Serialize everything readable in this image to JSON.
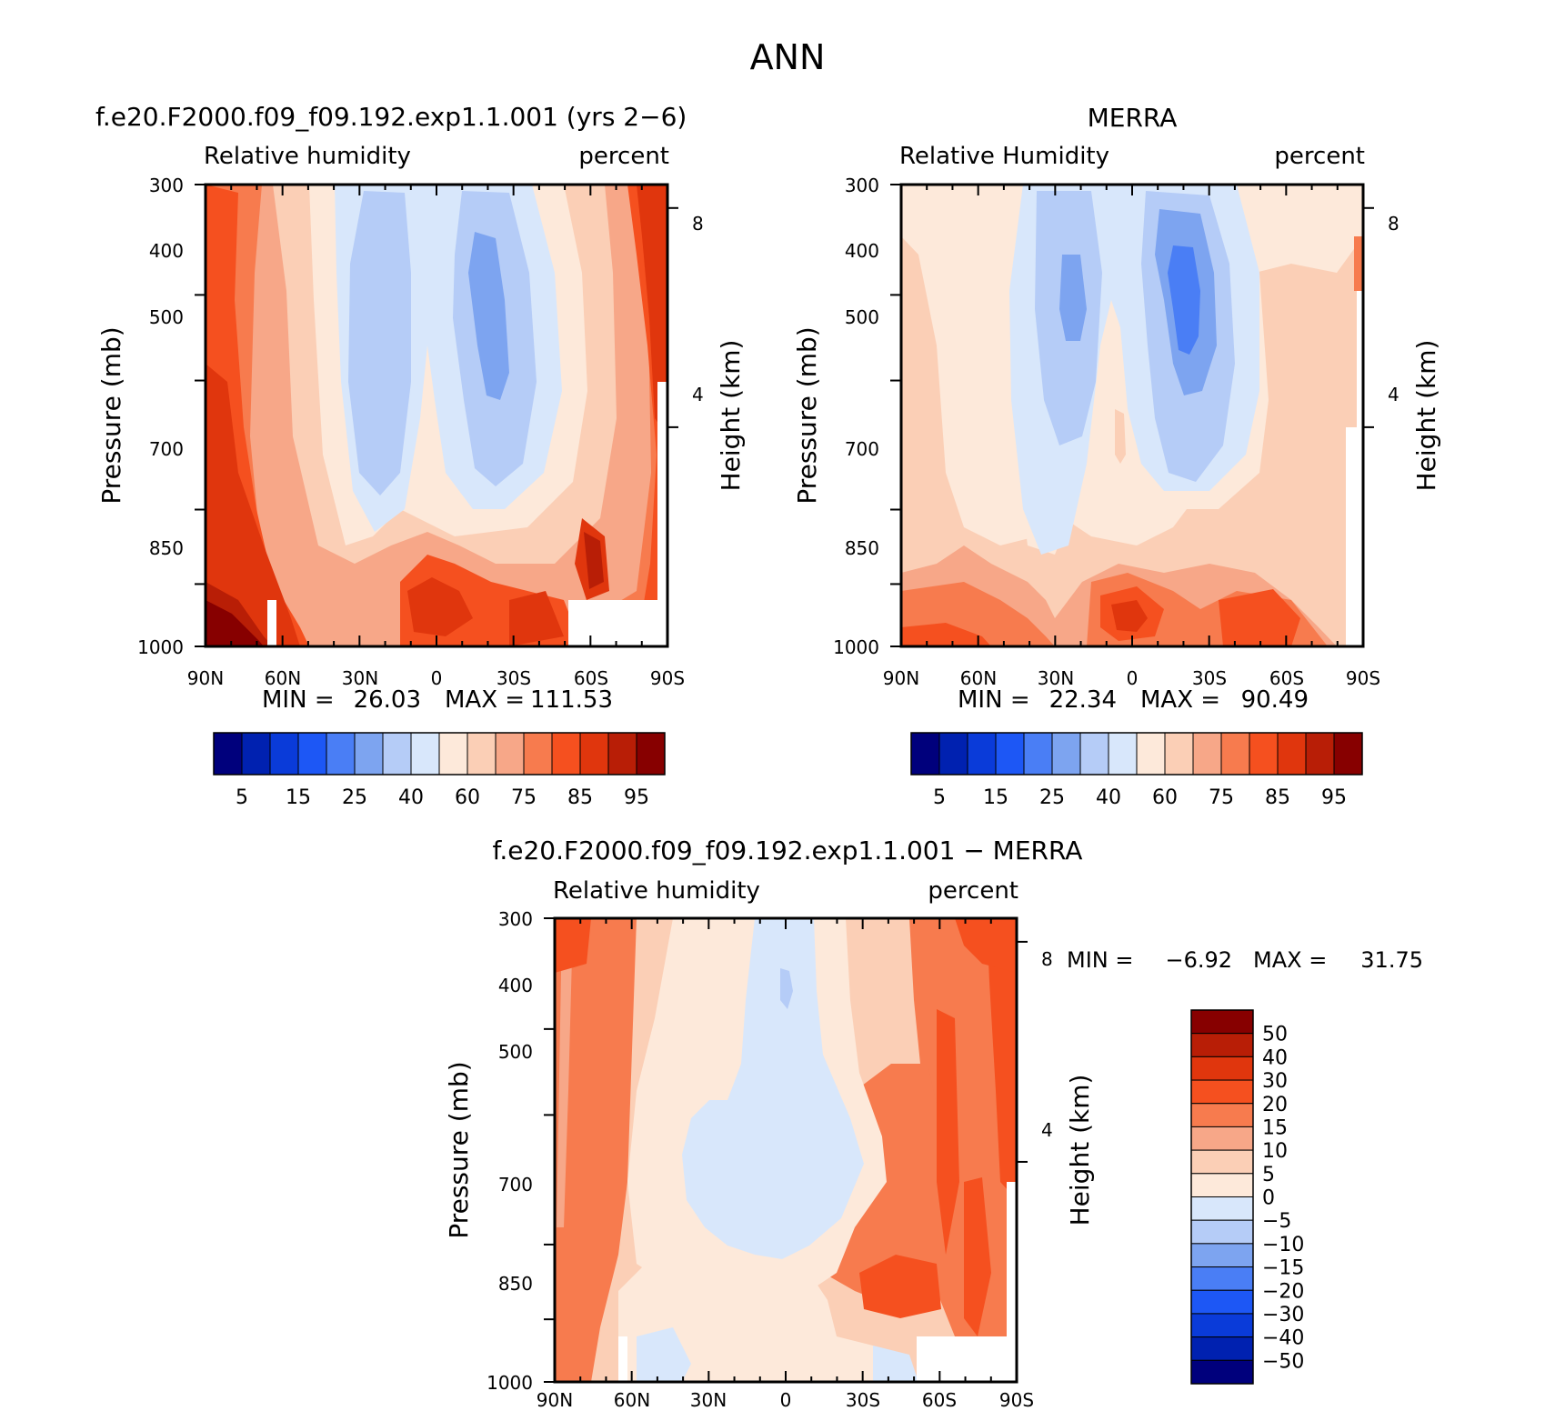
{
  "figure": {
    "title": "ANN"
  },
  "chart_data": [
    {
      "type": "heatmap",
      "id": "model",
      "case_title": "f.e20.F2000.f09_f09.192.exp1.1.001 (yrs 2-6)",
      "variable": "Relative humidity",
      "units": "percent",
      "xlabel": "",
      "ylabel": "Pressure (mb)",
      "ylabel_right": "Height (km)",
      "x_ticks": [
        "90N",
        "60N",
        "30N",
        "0",
        "30S",
        "60S",
        "90S"
      ],
      "y_ticks": [
        "300",
        "400",
        "500",
        "700",
        "850",
        "1000"
      ],
      "y_ticks_right": [
        "8",
        "4"
      ],
      "xlim": [
        90,
        -90
      ],
      "ylim": [
        1000,
        300
      ],
      "min_label": "MIN =",
      "min_value": "26.03",
      "max_label": "MAX =",
      "max_value": "111.53",
      "levels": [
        5,
        10,
        15,
        20,
        25,
        30,
        40,
        50,
        60,
        65,
        70,
        75,
        80,
        85,
        90,
        95
      ],
      "colorbar_labels": [
        "5",
        "15",
        "25",
        "40",
        "60",
        "75",
        "85",
        "95"
      ],
      "grid": false
    },
    {
      "type": "heatmap",
      "id": "obs",
      "case_title": "MERRA",
      "variable": "Relative Humidity",
      "units": "percent",
      "xlabel": "",
      "ylabel": "Pressure (mb)",
      "ylabel_right": "Height (km)",
      "x_ticks": [
        "90N",
        "60N",
        "30N",
        "0",
        "30S",
        "60S",
        "90S"
      ],
      "y_ticks": [
        "300",
        "400",
        "500",
        "700",
        "850",
        "1000"
      ],
      "y_ticks_right": [
        "8",
        "4"
      ],
      "xlim": [
        90,
        -90
      ],
      "ylim": [
        1000,
        300
      ],
      "min_label": "MIN =",
      "min_value": "22.34",
      "max_label": "MAX =",
      "max_value": "90.49",
      "levels": [
        5,
        10,
        15,
        20,
        25,
        30,
        40,
        50,
        60,
        65,
        70,
        75,
        80,
        85,
        90,
        95
      ],
      "colorbar_labels": [
        "5",
        "15",
        "25",
        "40",
        "60",
        "75",
        "85",
        "95"
      ],
      "grid": false
    },
    {
      "type": "heatmap",
      "id": "diff",
      "case_title": "f.e20.F2000.f09_f09.192.exp1.1.001 - MERRA",
      "variable": "Relative humidity",
      "units": "percent",
      "xlabel": "",
      "ylabel": "Pressure (mb)",
      "ylabel_right": "Height (km)",
      "x_ticks": [
        "90N",
        "60N",
        "30N",
        "0",
        "30S",
        "60S",
        "90S"
      ],
      "y_ticks": [
        "300",
        "400",
        "500",
        "700",
        "850",
        "1000"
      ],
      "y_ticks_right": [
        "8",
        "4"
      ],
      "xlim": [
        90,
        -90
      ],
      "ylim": [
        1000,
        300
      ],
      "min_label": "MIN =",
      "min_value": "-6.92",
      "max_label": "MAX =",
      "max_value": "31.75",
      "levels": [
        -50,
        -40,
        -30,
        -20,
        -15,
        -10,
        -5,
        0,
        5,
        10,
        15,
        20,
        30,
        40,
        50
      ],
      "colorbar_labels": [
        "50",
        "40",
        "30",
        "20",
        "15",
        "10",
        "5",
        "0",
        "-5",
        "-10",
        "-15",
        "-20",
        "-30",
        "-40",
        "-50"
      ],
      "grid": false
    }
  ],
  "palette": [
    "#00007c",
    "#0021b0",
    "#0a3bd9",
    "#1d57f5",
    "#4a7ef5",
    "#7da4f0",
    "#b5ccf7",
    "#d8e7fb",
    "#fde9da",
    "#fbcfb6",
    "#f7a788",
    "#f77b4e",
    "#f5501f",
    "#e0360d",
    "#b81e06",
    "#870000"
  ],
  "missing_color": "#ffffff"
}
